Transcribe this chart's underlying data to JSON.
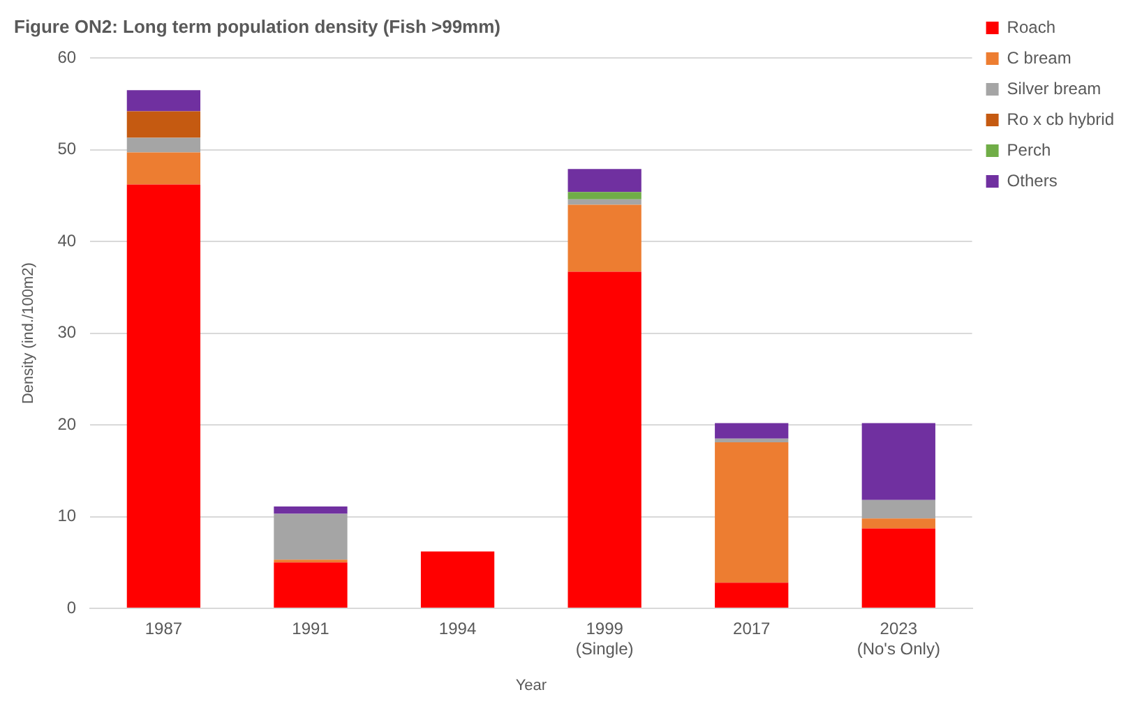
{
  "chart_data": {
    "type": "bar",
    "stacked": true,
    "title": "Figure ON2: Long term population density (Fish >99mm)",
    "xlabel": "Year",
    "ylabel": "Density (ind./100m2)",
    "categories": [
      "1987",
      "1991",
      "1994",
      "1999\n(Single)",
      "2017",
      "2023\n(No's Only)"
    ],
    "series": [
      {
        "name": "Roach",
        "color": "#ff0000",
        "values": [
          46.2,
          5.0,
          6.2,
          36.7,
          2.8,
          8.7
        ]
      },
      {
        "name": "C bream",
        "color": "#ed7d31",
        "values": [
          3.5,
          0.3,
          0,
          7.3,
          15.3,
          1.1
        ]
      },
      {
        "name": "Silver bream",
        "color": "#a5a5a5",
        "values": [
          1.6,
          5.0,
          0,
          0.6,
          0.4,
          2.0
        ]
      },
      {
        "name": "Ro x cb hybrid",
        "color": "#c55a11",
        "values": [
          2.9,
          0,
          0,
          0,
          0,
          0
        ]
      },
      {
        "name": "Perch",
        "color": "#70ad47",
        "values": [
          0,
          0,
          0,
          0.8,
          0,
          0
        ]
      },
      {
        "name": "Others",
        "color": "#7030a0",
        "values": [
          2.3,
          0.8,
          0,
          2.5,
          1.7,
          8.4
        ]
      }
    ],
    "ylim": [
      0,
      60
    ],
    "yticks": [
      0,
      10,
      20,
      30,
      40,
      50,
      60
    ],
    "grid": "y",
    "legend": "top right"
  }
}
